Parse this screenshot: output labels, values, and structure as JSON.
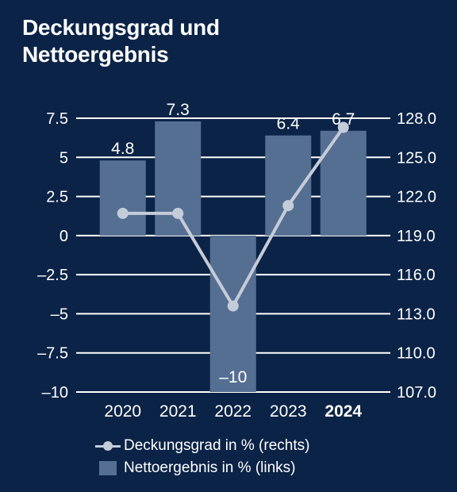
{
  "title": {
    "line1": "Deckungsgrad und",
    "line2": "Nettoergebnis"
  },
  "colors": {
    "background": "#0b2346",
    "bar": "#556f92",
    "line": "#c5ccd9",
    "grid": "#ffffff",
    "text": "#ffffff"
  },
  "chart_data": {
    "type": "bar",
    "categories": [
      "2020",
      "2021",
      "2022",
      "2023",
      "2024"
    ],
    "highlight_category": "2024",
    "series": [
      {
        "name": "Nettoergebnis in % (links)",
        "type": "bar",
        "axis": "left",
        "values": [
          4.8,
          7.3,
          -10,
          6.4,
          6.7
        ],
        "labels": [
          "4.8",
          "7.3",
          "–10",
          "6.4",
          "6.7"
        ]
      },
      {
        "name": "Deckungsgrad in % (rechts)",
        "type": "line",
        "axis": "right",
        "values": [
          120.7,
          120.7,
          113.6,
          121.3,
          127.3
        ]
      }
    ],
    "left_axis": {
      "ylim": [
        -10,
        7.5
      ],
      "ticks": [
        7.5,
        5,
        2.5,
        0,
        -2.5,
        -5,
        -7.5,
        -10
      ],
      "tick_labels": [
        "7.5",
        "5",
        "2.5",
        "0",
        "–2.5",
        "–5",
        "–7.5",
        "–10"
      ]
    },
    "right_axis": {
      "ylim": [
        107.0,
        128.0
      ],
      "ticks": [
        128.0,
        125.0,
        122.0,
        119.0,
        116.0,
        113.0,
        110.0,
        107.0
      ],
      "tick_labels": [
        "128.0",
        "125.0",
        "122.0",
        "119.0",
        "116.0",
        "113.0",
        "110.0",
        "107.0"
      ]
    },
    "grid": true,
    "legend_position": "bottom"
  },
  "legend": {
    "line_label": "Deckungsgrad in % (rechts)",
    "bar_label": "Nettoergebnis in % (links)"
  }
}
